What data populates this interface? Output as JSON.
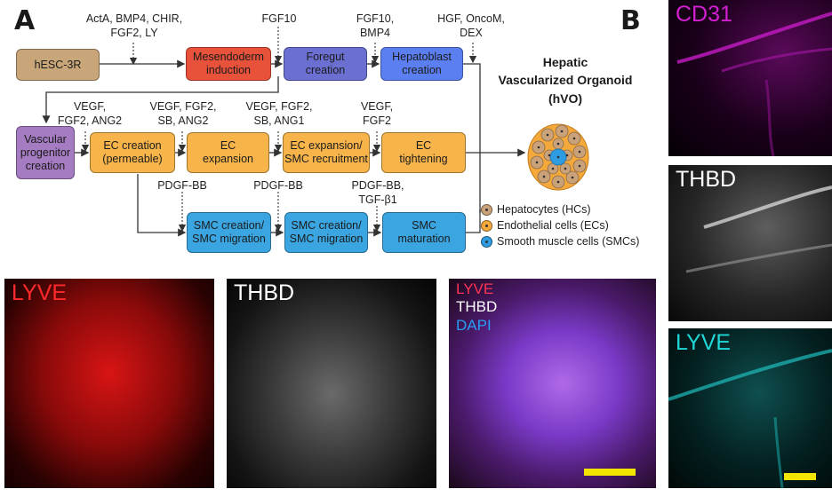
{
  "panels": {
    "a": "A",
    "b": "B"
  },
  "title": {
    "line1": "Hepatic",
    "line2": "Vascularized Organoid",
    "line3": "(hVO)"
  },
  "boxes": {
    "hesc": "hESC-3R",
    "mesendoderm": "Mesendoderm\ninduction",
    "foregut": "Foregut\ncreation",
    "hepatoblast": "Hepatoblast\ncreation",
    "vascular": "Vascular\nprogenitor\ncreation",
    "ec_creation": "EC creation\n(permeable)",
    "ec_expansion": "EC\nexpansion",
    "ec_smc": "EC expansion/\nSMC recruitment",
    "ec_tight": "EC\ntightening",
    "smc1": "SMC creation/\nSMC migration",
    "smc2": "SMC creation/\nSMC migration",
    "smc3": "SMC\nmaturation"
  },
  "factors": {
    "f1": "ActA, BMP4, CHIR,\nFGF2, LY",
    "f2": "FGF10",
    "f3": "FGF10,\nBMP4",
    "f4": "HGF, OncoM,\nDEX",
    "f5": "VEGF,\nFGF2, ANG2",
    "f6": "VEGF, FGF2,\nSB, ANG2",
    "f7": "VEGF, FGF2,\nSB, ANG1",
    "f8": "VEGF,\nFGF2",
    "f9": "PDGF-BB",
    "f10": "PDGF-BB",
    "f11": "PDGF-BB,\nTGF-β1"
  },
  "legend": [
    {
      "label": "Hepatocytes (HCs)",
      "color": "#c9a27a"
    },
    {
      "label": "Endothelial cells (ECs)",
      "color": "#f5a93a"
    },
    {
      "label": "Smooth muscle cells (SMCs)",
      "color": "#2f9be0"
    }
  ],
  "micrographs": {
    "cd31": "CD31",
    "thbd_b": "THBD",
    "lyve_b": "LYVE",
    "lyve": "LYVE",
    "thbd": "THBD",
    "merge_lyve": "LYVE",
    "merge_thbd": "THBD",
    "merge_dapi": "DAPI"
  },
  "colors": {
    "hesc": "#c9a679",
    "mesendoderm": "#e8523a",
    "foregut": "#6a6fd1",
    "hepatoblast": "#5b7ef0",
    "vascular": "#a57bc2",
    "ec": "#f7b44a",
    "smc": "#3aa5e0",
    "cd31": "#d21fd2",
    "lyve": "#ff2a2a",
    "cyan": "#1fd7d7",
    "dapi": "#2a9df4"
  }
}
